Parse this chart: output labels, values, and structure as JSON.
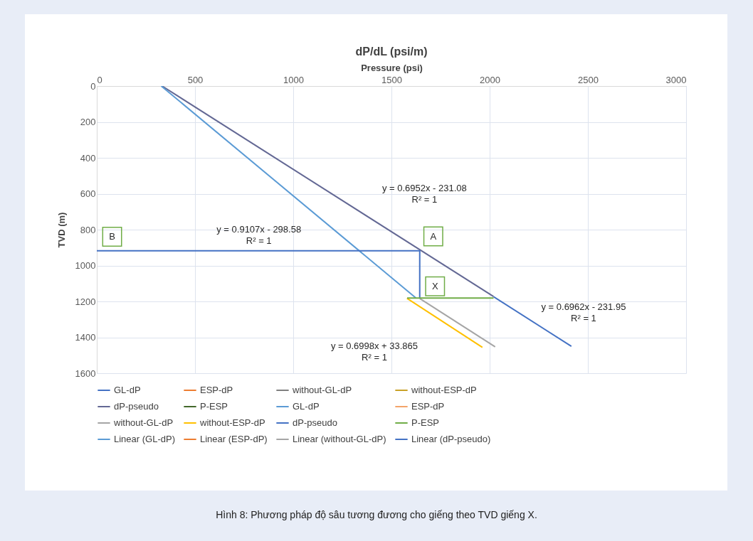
{
  "chart_data": {
    "type": "line",
    "title": "dP/dL (psi/m)",
    "xlabel": "Pressure (psi)",
    "ylabel": "TVD (m)",
    "xlim": [
      0,
      3000
    ],
    "xticks": [
      0,
      500,
      1000,
      1500,
      2000,
      2500,
      3000
    ],
    "ylim": [
      1600,
      0
    ],
    "yticks": [
      0,
      200,
      400,
      600,
      800,
      1000,
      1200,
      1400,
      1600
    ],
    "grid": true,
    "legend": "bottom",
    "series": [
      {
        "name": "GL-dP",
        "color": "#4472c4"
      },
      {
        "name": "ESP-dP",
        "color": "#ed7d31"
      },
      {
        "name": "without-GL-dP",
        "color": "#7f7f7f"
      },
      {
        "name": "without-ESP-dP",
        "color": "#c9a227"
      },
      {
        "name": "dP-pseudo",
        "color": "#636894",
        "x": [
          332,
          2020
        ],
        "values": [
          0,
          1173
        ]
      },
      {
        "name": "P-ESP",
        "color": "#43682b"
      },
      {
        "name": "GL-dP",
        "color": "#5b9bd5",
        "x": [
          328,
          1625
        ],
        "values": [
          0,
          1181
        ]
      },
      {
        "name": "ESP-dP",
        "color": "#f4a46a"
      },
      {
        "name": "without-GL-dP",
        "color": "#a5a5a5",
        "x": [
          1644,
          2028
        ],
        "values": [
          1184,
          1453
        ]
      },
      {
        "name": "without-ESP-dP",
        "color": "#ffc000",
        "x": [
          1579,
          1963
        ],
        "values": [
          1183,
          1456
        ]
      },
      {
        "name": "dP-pseudo",
        "color": "#4472c4",
        "x": [
          0,
          1644,
          1644
        ],
        "values": [
          918,
          918,
          1181
        ]
      },
      {
        "name": "P-ESP",
        "color": "#70ad47",
        "x": [
          1580,
          2020
        ],
        "values": [
          1181,
          1181
        ]
      },
      {
        "name": "Linear (GL-dP)",
        "color": "#5b9bd5"
      },
      {
        "name": "Linear (ESP-dP)",
        "color": "#ed7d31"
      },
      {
        "name": "Linear (without-GL-dP)",
        "color": "#a5a5a5"
      },
      {
        "name": "Linear (dP-pseudo)",
        "color": "#4472c4",
        "x": [
          2020,
          2416
        ],
        "values": [
          1174,
          1450
        ]
      }
    ],
    "annotations": [
      "y = 0.6952x - 231.08\nR² = 1",
      "y = 0.9107x - 298.58\nR² = 1",
      "y = 0.6962x - 231.95\nR² = 1",
      "y = 0.6998x + 33.865\nR² = 1",
      {
        "text": "A",
        "x": 1713,
        "y": 838
      },
      {
        "text": "B",
        "x": 78,
        "y": 840
      },
      {
        "text": "X",
        "x": 1722,
        "y": 1116
      },
      "Hình 8: Phương pháp độ sâu tương đương cho giếng theo TVD giếng X."
    ]
  }
}
